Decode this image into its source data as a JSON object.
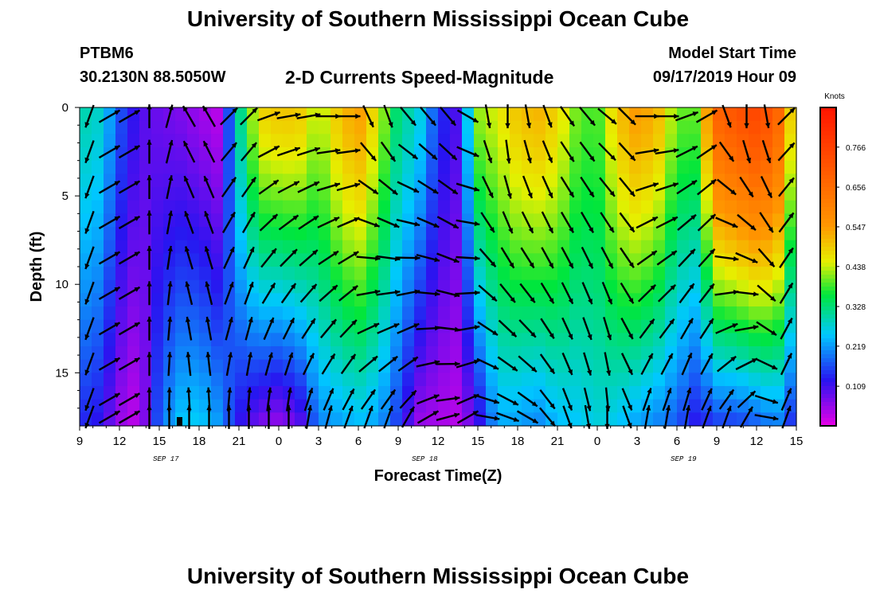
{
  "page_title": "University of Southern Mississippi Ocean Cube",
  "footer_title": "University of Southern Mississippi Ocean Cube",
  "station": {
    "id": "PTBM6",
    "location": "30.2130N 88.5050W"
  },
  "chart_title": "2-D Currents Speed-Magnitude",
  "model_start": {
    "label": "Model Start Time",
    "value": "09/17/2019 Hour 09"
  },
  "chart_data": {
    "type": "heatmap",
    "xlabel": "Forecast Time(Z)",
    "ylabel": "Depth (ft)",
    "x_range_hours": [
      0,
      54
    ],
    "y_range_ft": [
      0,
      18
    ],
    "y_inverted": true,
    "x_tick_labels": [
      "9",
      "12",
      "15",
      "18",
      "21",
      "0",
      "3",
      "6",
      "9",
      "12",
      "15",
      "18",
      "21",
      "0",
      "3",
      "6",
      "9",
      "12",
      "15"
    ],
    "y_ticks": [
      0,
      5,
      10,
      15
    ],
    "y_tick_labels": [
      "0",
      "5",
      "10",
      "15"
    ],
    "date_labels": [
      {
        "text": "SEP 17",
        "hour": 6.5
      },
      {
        "text": "SEP 18",
        "hour": 26
      },
      {
        "text": "SEP 19",
        "hour": 45.5
      }
    ],
    "colorbar": {
      "title": "Knots",
      "min": 0.0,
      "max": 0.875,
      "labels": [
        "0.766",
        "0.656",
        "0.547",
        "0.438",
        "0.328",
        "0.219",
        "0.109"
      ],
      "label_values": [
        0.766,
        0.656,
        0.547,
        0.438,
        0.328,
        0.219,
        0.109
      ]
    },
    "current_marker_hour": 7.5,
    "speed_profile": {
      "hours": [
        0,
        1.5,
        3,
        4.5,
        6,
        7.5,
        9,
        10.5,
        12,
        13.5,
        15,
        16.5,
        18,
        19.5,
        21,
        22.5,
        24,
        25.5,
        27,
        28.5,
        30,
        31.5,
        33,
        34.5,
        36,
        37.5,
        39,
        40.5,
        42,
        43.5,
        45,
        46.5,
        48,
        49.5,
        51,
        52.5,
        54
      ],
      "near_surface_knots": [
        0.3,
        0.28,
        0.17,
        0.1,
        0.08,
        0.07,
        0.05,
        0.03,
        0.3,
        0.48,
        0.5,
        0.5,
        0.42,
        0.5,
        0.55,
        0.45,
        0.32,
        0.28,
        0.15,
        0.1,
        0.42,
        0.45,
        0.5,
        0.52,
        0.48,
        0.4,
        0.38,
        0.5,
        0.55,
        0.52,
        0.4,
        0.4,
        0.68,
        0.72,
        0.75,
        0.7,
        0.4
      ],
      "near_bottom_knots": [
        0.14,
        0.12,
        0.05,
        0.02,
        0.18,
        0.25,
        0.26,
        0.22,
        0.12,
        0.07,
        0.05,
        0.08,
        0.2,
        0.22,
        0.24,
        0.22,
        0.15,
        0.05,
        0.04,
        0.03,
        0.1,
        0.23,
        0.22,
        0.2,
        0.24,
        0.25,
        0.27,
        0.25,
        0.22,
        0.2,
        0.17,
        0.12,
        0.15,
        0.15,
        0.17,
        0.2,
        0.12
      ],
      "slow_core_center_hour": [
        null,
        null,
        null,
        null,
        null,
        null,
        null,
        null,
        null,
        null,
        null,
        null,
        null,
        null,
        null,
        null,
        null,
        null,
        null,
        null,
        null,
        null,
        null,
        null,
        null,
        null,
        null,
        null,
        null,
        null,
        null,
        null,
        null,
        null,
        null,
        null,
        null
      ]
    },
    "vector_directions_deg": {
      "hours": [
        0,
        1.5,
        3,
        4.5,
        6,
        7.5,
        9,
        10.5,
        12,
        13.5,
        15,
        16.5,
        18,
        19.5,
        21,
        22.5,
        24,
        25.5,
        27,
        28.5,
        30,
        31.5,
        33,
        34.5,
        36,
        37.5,
        39,
        40.5,
        42,
        43.5,
        45,
        46.5,
        48,
        49.5,
        51,
        52.5,
        54
      ],
      "surface": [
        200,
        60,
        60,
        0,
        15,
        330,
        330,
        45,
        45,
        70,
        80,
        80,
        90,
        90,
        155,
        160,
        140,
        140,
        140,
        120,
        170,
        180,
        170,
        160,
        145,
        140,
        130,
        135,
        90,
        90,
        70,
        60,
        160,
        180,
        170,
        45,
        45
      ],
      "bottom": [
        200,
        60,
        60,
        0,
        0,
        0,
        0,
        0,
        0,
        0,
        0,
        10,
        15,
        20,
        20,
        20,
        30,
        60,
        75,
        60,
        100,
        110,
        120,
        140,
        160,
        170,
        180,
        160,
        10,
        10,
        10,
        20,
        20,
        30,
        100,
        20,
        160
      ]
    }
  }
}
